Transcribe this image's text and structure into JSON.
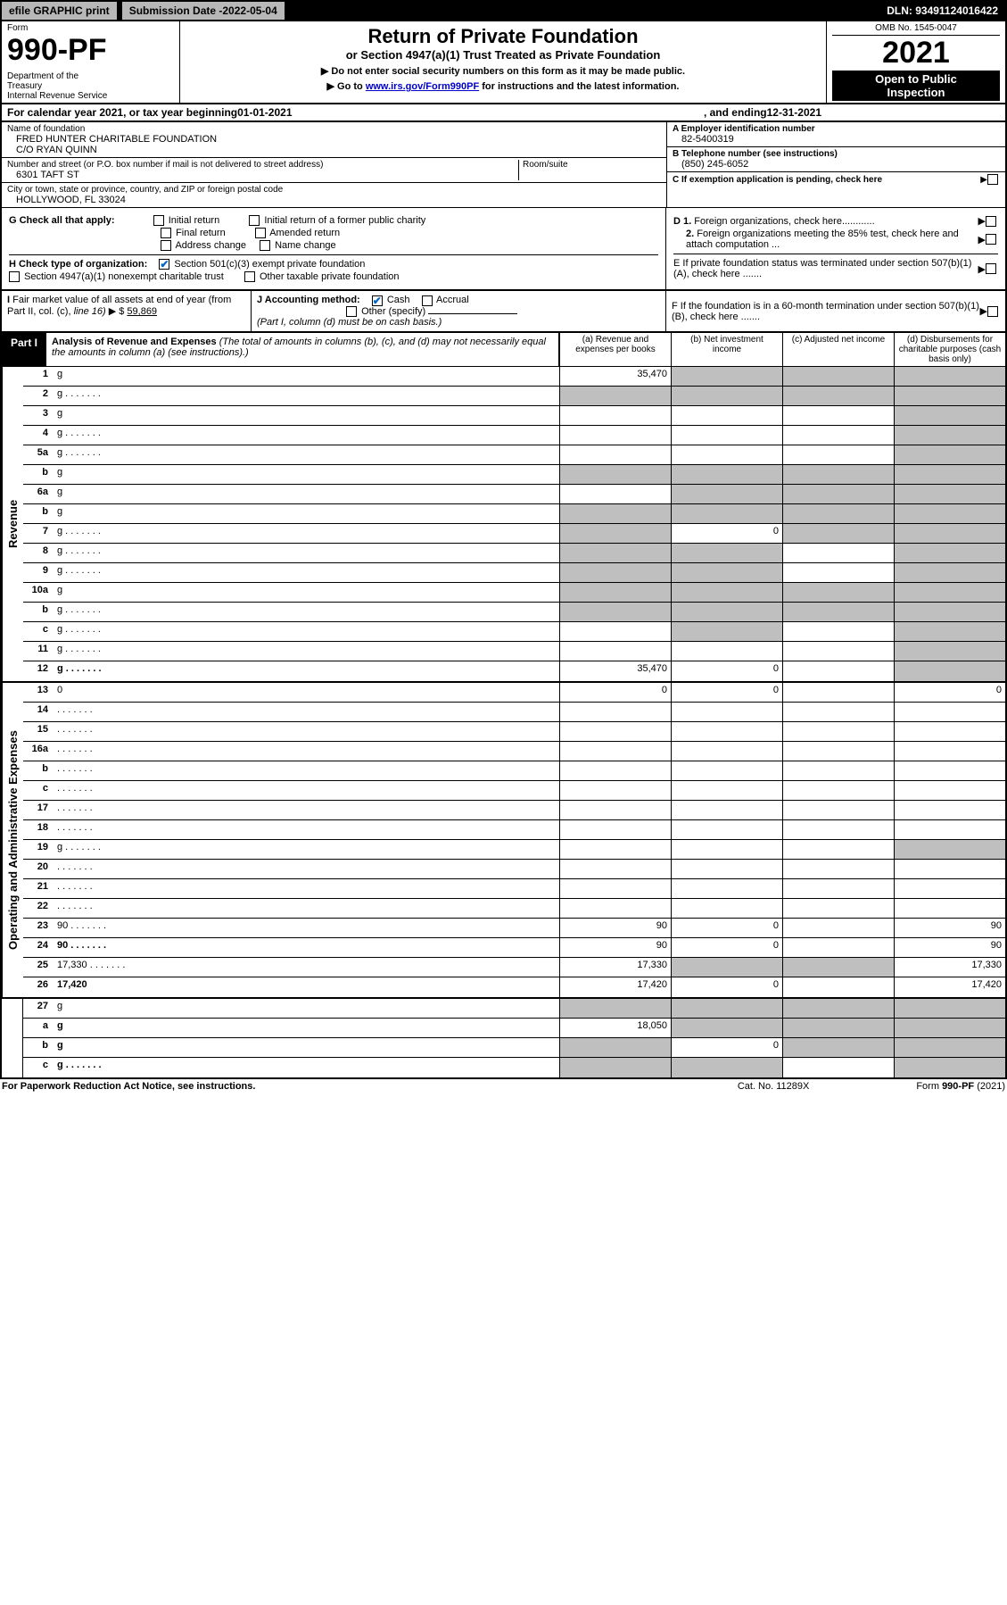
{
  "topbar": {
    "efile": "efile GRAPHIC print",
    "sub_date_label": "Submission Date - ",
    "sub_date": "2022-05-04",
    "dln_label": "DLN: ",
    "dln": "93491124016422"
  },
  "header": {
    "form_label": "Form",
    "form_num": "990-PF",
    "dept": "Department of the Treasury\nInternal Revenue Service",
    "title": "Return of Private Foundation",
    "subtitle": "or Section 4947(a)(1) Trust Treated as Private Foundation",
    "note1": "▶ Do not enter social security numbers on this form as it may be made public.",
    "note2_pre": "▶ Go to ",
    "note2_link": "www.irs.gov/Form990PF",
    "note2_post": " for instructions and the latest information.",
    "omb": "OMB No. 1545-0047",
    "year": "2021",
    "open": "Open to Public Inspection"
  },
  "calyear": {
    "pre": "For calendar year 2021, or tax year beginning ",
    "begin": "01-01-2021",
    "mid": " , and ending ",
    "end": "12-31-2021"
  },
  "id": {
    "name_label": "Name of foundation",
    "name": "FRED HUNTER CHARITABLE FOUNDATION",
    "name2": "C/O RYAN QUINN",
    "addr_label": "Number and street (or P.O. box number if mail is not delivered to street address)",
    "addr": "6301 TAFT ST",
    "room_label": "Room/suite",
    "city_label": "City or town, state or province, country, and ZIP or foreign postal code",
    "city": "HOLLYWOOD, FL  33024",
    "a_label": "A Employer identification number",
    "a_val": "82-5400319",
    "b_label": "B Telephone number (see instructions)",
    "b_val": "(850) 245-6052",
    "c_label": "C If exemption application is pending, check here"
  },
  "checks": {
    "g_label": "G Check all that apply:",
    "g_opts": [
      "Initial return",
      "Initial return of a former public charity",
      "Final return",
      "Amended return",
      "Address change",
      "Name change"
    ],
    "h_label": "H Check type of organization:",
    "h_opt1": "Section 501(c)(3) exempt private foundation",
    "h_opt2": "Section 4947(a)(1) nonexempt charitable trust",
    "h_opt3": "Other taxable private foundation",
    "i_label": "I Fair market value of all assets at end of year (from Part II, col. (c), line 16) ▶ $",
    "i_val": "59,869",
    "j_label": "J Accounting method:",
    "j_cash": "Cash",
    "j_accrual": "Accrual",
    "j_other": "Other (specify)",
    "j_note": "(Part I, column (d) must be on cash basis.)",
    "d1": "D 1. Foreign organizations, check here............",
    "d2": "2. Foreign organizations meeting the 85% test, check here and attach computation ...",
    "e": "E  If private foundation status was terminated under section 507(b)(1)(A), check here .......",
    "f": "F  If the foundation is in a 60-month termination under section 507(b)(1)(B), check here .......",
    "arrow": "▶"
  },
  "part1": {
    "label": "Part I",
    "title": "Analysis of Revenue and Expenses",
    "note": " (The total of amounts in columns (b), (c), and (d) may not necessarily equal the amounts in column (a) (see instructions).)",
    "col_a": "(a) Revenue and expenses per books",
    "col_b": "(b) Net investment income",
    "col_c": "(c) Adjusted net income",
    "col_d": "(d) Disbursements for charitable purposes (cash basis only)"
  },
  "sections": {
    "revenue": "Revenue",
    "opex": "Operating and Administrative Expenses"
  },
  "rows": [
    {
      "n": "1",
      "d": "g",
      "a": "35,470",
      "b": "g",
      "c": "g"
    },
    {
      "n": "2",
      "d": "g",
      "a": "g",
      "b": "g",
      "c": "g",
      "dots": true
    },
    {
      "n": "3",
      "d": "g",
      "a": "",
      "b": "",
      "c": ""
    },
    {
      "n": "4",
      "d": "g",
      "a": "",
      "b": "",
      "c": "",
      "dots": true
    },
    {
      "n": "5a",
      "d": "g",
      "a": "",
      "b": "",
      "c": "",
      "dots": true
    },
    {
      "n": "b",
      "d": "g",
      "a": "g",
      "b": "g",
      "c": "g",
      "underline": true
    },
    {
      "n": "6a",
      "d": "g",
      "a": "",
      "b": "g",
      "c": "g"
    },
    {
      "n": "b",
      "d": "g",
      "a": "g",
      "b": "g",
      "c": "g",
      "underline": true
    },
    {
      "n": "7",
      "d": "g",
      "a": "g",
      "b": "0",
      "c": "g",
      "dots": true
    },
    {
      "n": "8",
      "d": "g",
      "a": "g",
      "b": "g",
      "c": "",
      "dots": true
    },
    {
      "n": "9",
      "d": "g",
      "a": "g",
      "b": "g",
      "c": "",
      "dots": true
    },
    {
      "n": "10a",
      "d": "g",
      "a": "g",
      "b": "g",
      "c": "g",
      "box": true
    },
    {
      "n": "b",
      "d": "g",
      "a": "g",
      "b": "g",
      "c": "g",
      "dots": true,
      "box": true
    },
    {
      "n": "c",
      "d": "g",
      "a": "",
      "b": "g",
      "c": "",
      "dots": true
    },
    {
      "n": "11",
      "d": "g",
      "a": "",
      "b": "",
      "c": "",
      "dots": true
    },
    {
      "n": "12",
      "d": "g",
      "a": "35,470",
      "b": "0",
      "c": "",
      "dots": true,
      "bold": true
    }
  ],
  "rows2": [
    {
      "n": "13",
      "d": "0",
      "a": "0",
      "b": "0",
      "c": ""
    },
    {
      "n": "14",
      "d": "",
      "a": "",
      "b": "",
      "c": "",
      "dots": true
    },
    {
      "n": "15",
      "d": "",
      "a": "",
      "b": "",
      "c": "",
      "dots": true
    },
    {
      "n": "16a",
      "d": "",
      "a": "",
      "b": "",
      "c": "",
      "dots": true
    },
    {
      "n": "b",
      "d": "",
      "a": "",
      "b": "",
      "c": "",
      "dots": true
    },
    {
      "n": "c",
      "d": "",
      "a": "",
      "b": "",
      "c": "",
      "dots": true
    },
    {
      "n": "17",
      "d": "",
      "a": "",
      "b": "",
      "c": "",
      "dots": true
    },
    {
      "n": "18",
      "d": "",
      "a": "",
      "b": "",
      "c": "",
      "dots": true
    },
    {
      "n": "19",
      "d": "g",
      "a": "",
      "b": "",
      "c": "",
      "dots": true
    },
    {
      "n": "20",
      "d": "",
      "a": "",
      "b": "",
      "c": "",
      "dots": true
    },
    {
      "n": "21",
      "d": "",
      "a": "",
      "b": "",
      "c": "",
      "dots": true
    },
    {
      "n": "22",
      "d": "",
      "a": "",
      "b": "",
      "c": "",
      "dots": true
    },
    {
      "n": "23",
      "d": "90",
      "a": "90",
      "b": "0",
      "c": "",
      "dots": true
    },
    {
      "n": "24",
      "d": "90",
      "a": "90",
      "b": "0",
      "c": "",
      "dots": true,
      "bold": true
    },
    {
      "n": "25",
      "d": "17,330",
      "a": "17,330",
      "b": "g",
      "c": "g",
      "dots": true
    },
    {
      "n": "26",
      "d": "17,420",
      "a": "17,420",
      "b": "0",
      "c": "",
      "bold": true
    }
  ],
  "rows3": [
    {
      "n": "27",
      "d": "g",
      "a": "g",
      "b": "g",
      "c": "g"
    },
    {
      "n": "a",
      "d": "g",
      "a": "18,050",
      "b": "g",
      "c": "g",
      "bold": true
    },
    {
      "n": "b",
      "d": "g",
      "a": "g",
      "b": "0",
      "c": "g",
      "bold": true
    },
    {
      "n": "c",
      "d": "g",
      "a": "g",
      "b": "g",
      "c": "",
      "bold": true,
      "dots": true
    }
  ],
  "footer": {
    "pra": "For Paperwork Reduction Act Notice, see instructions.",
    "cat": "Cat. No. 11289X",
    "form": "Form 990-PF (2021)"
  }
}
